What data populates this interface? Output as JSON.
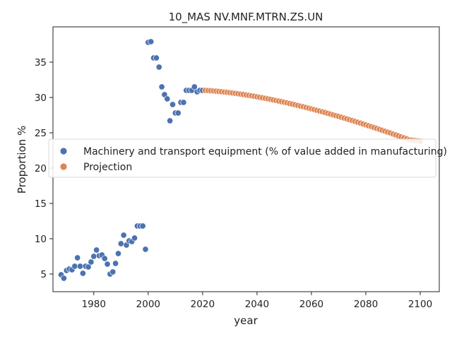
{
  "chart_data": {
    "type": "scatter",
    "title": "10_MAS NV.MNF.MTRN.ZS.UN",
    "xlabel": "year",
    "ylabel": "Proportion %",
    "xlim": [
      1965,
      2107
    ],
    "ylim": [
      2.5,
      40.0
    ],
    "xticks": [
      1980,
      2000,
      2020,
      2040,
      2060,
      2080,
      2100
    ],
    "yticks": [
      5,
      10,
      15,
      20,
      25,
      30,
      35
    ],
    "grid": false,
    "legend_position": "center-left",
    "series": [
      {
        "name": "Machinery and transport equipment (% of value added in manufacturing)",
        "color": "#4c72b0",
        "x": [
          1968,
          1969,
          1970,
          1971,
          1972,
          1973,
          1974,
          1975,
          1976,
          1977,
          1978,
          1979,
          1980,
          1981,
          1982,
          1983,
          1984,
          1985,
          1986,
          1987,
          1988,
          1989,
          1990,
          1991,
          1992,
          1993,
          1994,
          1995,
          1996,
          1997,
          1998,
          1999,
          2000,
          2001,
          2002,
          2003,
          2004,
          2005,
          2006,
          2007,
          2008,
          2009,
          2010,
          2011,
          2012,
          2013,
          2014,
          2015,
          2016,
          2017,
          2018,
          2019,
          2020
        ],
        "y": [
          4.9,
          4.4,
          5.5,
          5.7,
          5.6,
          6.1,
          7.3,
          6.1,
          5.1,
          6.1,
          6.0,
          6.7,
          7.5,
          8.4,
          7.6,
          7.7,
          7.2,
          6.4,
          5.0,
          5.3,
          6.5,
          7.9,
          9.3,
          10.5,
          9.1,
          9.7,
          9.6,
          10.1,
          11.8,
          11.8,
          11.8,
          8.5,
          37.8,
          37.9,
          35.6,
          35.6,
          34.3,
          31.5,
          30.4,
          29.8,
          26.7,
          29.0,
          27.8,
          27.8,
          29.3,
          29.3,
          31.0,
          31.0,
          31.0,
          31.5,
          30.8,
          31.0,
          31.0
        ]
      },
      {
        "name": "Projection",
        "color": "#dd8452",
        "x_start": 2021,
        "x_end": 2100,
        "x_step": 1,
        "y": [
          31.0,
          30.98,
          30.95,
          30.92,
          30.89,
          30.85,
          30.81,
          30.77,
          30.73,
          30.68,
          30.63,
          30.58,
          30.53,
          30.47,
          30.41,
          30.35,
          30.29,
          30.23,
          30.16,
          30.09,
          30.02,
          29.95,
          29.88,
          29.8,
          29.73,
          29.65,
          29.57,
          29.49,
          29.4,
          29.32,
          29.23,
          29.14,
          29.05,
          28.96,
          28.87,
          28.77,
          28.68,
          28.58,
          28.48,
          28.38,
          28.28,
          28.18,
          28.07,
          27.97,
          27.86,
          27.75,
          27.64,
          27.53,
          27.42,
          27.31,
          27.2,
          27.08,
          26.96,
          26.85,
          26.73,
          26.61,
          26.49,
          26.37,
          26.24,
          26.12,
          25.99,
          25.87,
          25.74,
          25.61,
          25.48,
          25.35,
          25.22,
          25.09,
          24.96,
          24.82,
          24.69,
          24.55,
          24.41,
          24.28,
          24.14,
          24.0,
          23.95,
          23.9,
          23.86,
          23.82
        ]
      }
    ]
  }
}
